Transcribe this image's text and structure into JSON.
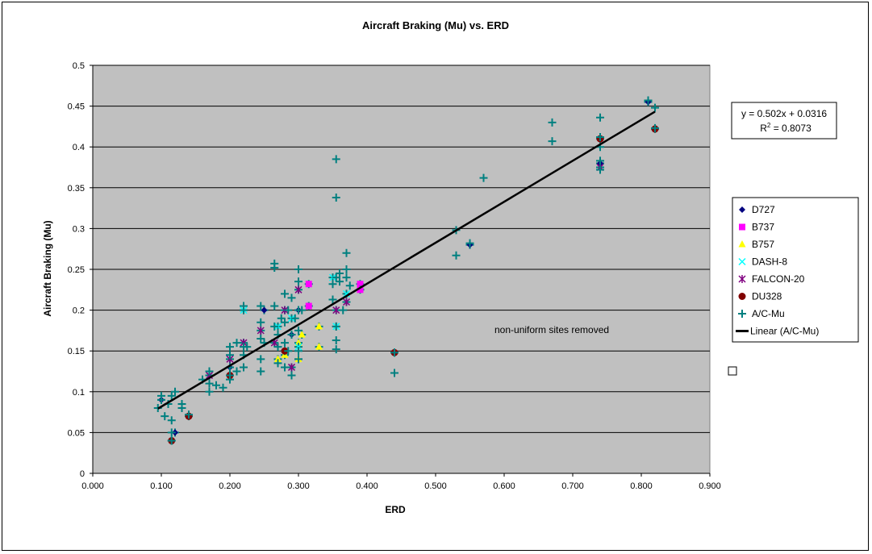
{
  "chart_data": {
    "type": "scatter",
    "title": "Aircraft Braking (Mu) vs. ERD",
    "xlabel": "ERD",
    "ylabel": "Aircraft Braking (Mu)",
    "xlim": [
      0.0,
      0.9
    ],
    "ylim": [
      0,
      0.5
    ],
    "x_ticks": [
      "0.000",
      "0.100",
      "0.200",
      "0.300",
      "0.400",
      "0.500",
      "0.600",
      "0.700",
      "0.800",
      "0.900"
    ],
    "y_ticks": [
      "0",
      "0.05",
      "0.1",
      "0.15",
      "0.2",
      "0.25",
      "0.3",
      "0.35",
      "0.4",
      "0.45",
      "0.5"
    ],
    "grid": "horizontal",
    "plot_background": "#c0c0c0",
    "legend_position": "right",
    "equation": "y = 0.502x + 0.0316",
    "r2_label": "R",
    "r2_exp": "2",
    "r2_value": " = 0.8073",
    "annotation": "non-uniform sites removed",
    "trendline": {
      "name": "Linear (A/C-Mu)",
      "slope": 0.502,
      "intercept": 0.0316,
      "x_range": [
        0.095,
        0.82
      ],
      "color": "#000000"
    },
    "series": [
      {
        "name": "D727",
        "marker": "diamond",
        "color": "#000080",
        "x": [
          0.1,
          0.12,
          0.2,
          0.25,
          0.29,
          0.3,
          0.55,
          0.74,
          0.81
        ],
        "y": [
          0.09,
          0.05,
          0.13,
          0.2,
          0.17,
          0.2,
          0.28,
          0.38,
          0.455
        ]
      },
      {
        "name": "B737",
        "marker": "square",
        "color": "#ff00ff",
        "x": [
          0.315,
          0.315,
          0.39,
          0.39
        ],
        "y": [
          0.232,
          0.205,
          0.232,
          0.225
        ]
      },
      {
        "name": "B757",
        "marker": "triangle",
        "color": "#ffff00",
        "x": [
          0.27,
          0.28,
          0.3,
          0.3,
          0.305,
          0.33,
          0.33
        ],
        "y": [
          0.14,
          0.145,
          0.14,
          0.16,
          0.17,
          0.155,
          0.18
        ]
      },
      {
        "name": "DASH-8",
        "marker": "x",
        "color": "#00ffff",
        "x": [
          0.22,
          0.27,
          0.29,
          0.3,
          0.35,
          0.355,
          0.37
        ],
        "y": [
          0.2,
          0.18,
          0.19,
          0.155,
          0.24,
          0.18,
          0.22
        ]
      },
      {
        "name": "FALCON-20",
        "marker": "star",
        "color": "#800080",
        "x": [
          0.17,
          0.2,
          0.22,
          0.245,
          0.265,
          0.28,
          0.29,
          0.3,
          0.355,
          0.37,
          0.74
        ],
        "y": [
          0.12,
          0.14,
          0.16,
          0.175,
          0.16,
          0.2,
          0.13,
          0.225,
          0.2,
          0.21,
          0.375
        ]
      },
      {
        "name": "DU328",
        "marker": "circle",
        "color": "#800000",
        "x": [
          0.115,
          0.14,
          0.2,
          0.28,
          0.44,
          0.74,
          0.82
        ],
        "y": [
          0.04,
          0.07,
          0.12,
          0.15,
          0.148,
          0.41,
          0.422
        ]
      },
      {
        "name": "A/C-Mu",
        "marker": "plus",
        "color": "#008080",
        "x": [
          0.095,
          0.1,
          0.1,
          0.105,
          0.11,
          0.115,
          0.115,
          0.115,
          0.115,
          0.12,
          0.13,
          0.13,
          0.14,
          0.16,
          0.17,
          0.17,
          0.17,
          0.18,
          0.19,
          0.2,
          0.2,
          0.2,
          0.2,
          0.2,
          0.21,
          0.21,
          0.22,
          0.22,
          0.22,
          0.22,
          0.22,
          0.225,
          0.245,
          0.245,
          0.245,
          0.245,
          0.245,
          0.25,
          0.265,
          0.265,
          0.265,
          0.265,
          0.27,
          0.27,
          0.27,
          0.275,
          0.28,
          0.28,
          0.28,
          0.28,
          0.285,
          0.285,
          0.29,
          0.29,
          0.29,
          0.295,
          0.3,
          0.3,
          0.3,
          0.3,
          0.3,
          0.3,
          0.305,
          0.35,
          0.35,
          0.355,
          0.355,
          0.355,
          0.355,
          0.355,
          0.355,
          0.36,
          0.36,
          0.365,
          0.37,
          0.37,
          0.37,
          0.375,
          0.44,
          0.44,
          0.53,
          0.53,
          0.55,
          0.57,
          0.67,
          0.67,
          0.74,
          0.74,
          0.74,
          0.74,
          0.74,
          0.81,
          0.82,
          0.82
        ],
        "y": [
          0.08,
          0.09,
          0.095,
          0.07,
          0.085,
          0.095,
          0.065,
          0.05,
          0.04,
          0.1,
          0.085,
          0.08,
          0.072,
          0.115,
          0.125,
          0.11,
          0.1,
          0.108,
          0.105,
          0.155,
          0.145,
          0.13,
          0.12,
          0.115,
          0.16,
          0.125,
          0.205,
          0.2,
          0.155,
          0.145,
          0.13,
          0.155,
          0.205,
          0.185,
          0.165,
          0.14,
          0.125,
          0.16,
          0.257,
          0.252,
          0.205,
          0.18,
          0.17,
          0.155,
          0.135,
          0.19,
          0.22,
          0.185,
          0.16,
          0.13,
          0.2,
          0.15,
          0.215,
          0.17,
          0.12,
          0.19,
          0.25,
          0.235,
          0.2,
          0.175,
          0.15,
          0.14,
          0.2,
          0.232,
          0.213,
          0.385,
          0.338,
          0.18,
          0.163,
          0.152,
          0.24,
          0.245,
          0.235,
          0.2,
          0.27,
          0.25,
          0.24,
          0.23,
          0.148,
          0.123,
          0.298,
          0.267,
          0.282,
          0.362,
          0.43,
          0.407,
          0.436,
          0.412,
          0.383,
          0.372,
          0.4,
          0.457,
          0.448,
          0.423
        ]
      }
    ]
  }
}
